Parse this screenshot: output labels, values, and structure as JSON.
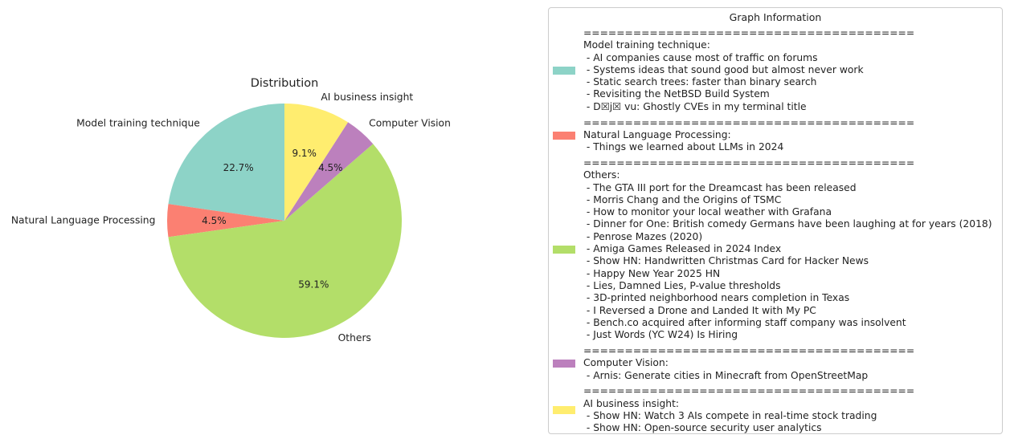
{
  "chart_data": {
    "type": "pie",
    "title": "Distribution",
    "slices": [
      {
        "label": "Model training technique",
        "value": 22.7,
        "pct_label": "22.7%",
        "color": "#8dd3c7"
      },
      {
        "label": "Natural Language Processing",
        "value": 4.5,
        "pct_label": "4.5%",
        "color": "#fb8072"
      },
      {
        "label": "Others",
        "value": 59.1,
        "pct_label": "59.1%",
        "color": "#b3de69"
      },
      {
        "label": "Computer Vision",
        "value": 4.5,
        "pct_label": "4.5%",
        "color": "#bc80bd"
      },
      {
        "label": "AI business insight",
        "value": 9.1,
        "pct_label": "9.1%",
        "color": "#ffed6f"
      }
    ],
    "start_angle_deg": 90,
    "direction": "counterclockwise",
    "legend": {
      "title": "Graph Information",
      "placement": "right",
      "entries": [
        {
          "color": "#8dd3c7",
          "lines": [
            "========================================",
            "Model training technique:",
            " - AI companies cause most of traffic on forums",
            " - Systems ideas that sound good but almost never work",
            " - Static search trees: faster than binary search",
            " - Revisiting the NetBSD Build System",
            " - D☒j☒ vu: Ghostly CVEs in my terminal title"
          ]
        },
        {
          "color": "#fb8072",
          "lines": [
            "========================================",
            "Natural Language Processing:",
            " - Things we learned about LLMs in 2024"
          ]
        },
        {
          "color": "#b3de69",
          "lines": [
            "========================================",
            "Others:",
            " - The GTA III port for the Dreamcast has been released",
            " - Morris Chang and the Origins of TSMC",
            " - How to monitor your local weather with Grafana",
            " - Dinner for One: British comedy Germans have been laughing at for years (2018)",
            " - Penrose Mazes (2020)",
            " - Amiga Games Released in 2024 Index",
            " - Show HN: Handwritten Christmas Card for Hacker News",
            " - Happy New Year 2025 HN",
            " - Lies, Damned Lies, P-value thresholds",
            " - 3D-printed neighborhood nears completion in Texas",
            " - I Reversed a Drone and Landed It with My PC",
            " - Bench.co acquired after informing staff company was insolvent",
            " - Just Words (YC W24) Is Hiring"
          ]
        },
        {
          "color": "#bc80bd",
          "lines": [
            "========================================",
            "Computer Vision:",
            " - Arnis: Generate cities in Minecraft from OpenStreetMap"
          ]
        },
        {
          "color": "#ffed6f",
          "lines": [
            "========================================",
            "AI business insight:",
            " - Show HN: Watch 3 AIs compete in real-time stock trading",
            " - Show HN: Open-source security user analytics"
          ]
        }
      ]
    }
  }
}
